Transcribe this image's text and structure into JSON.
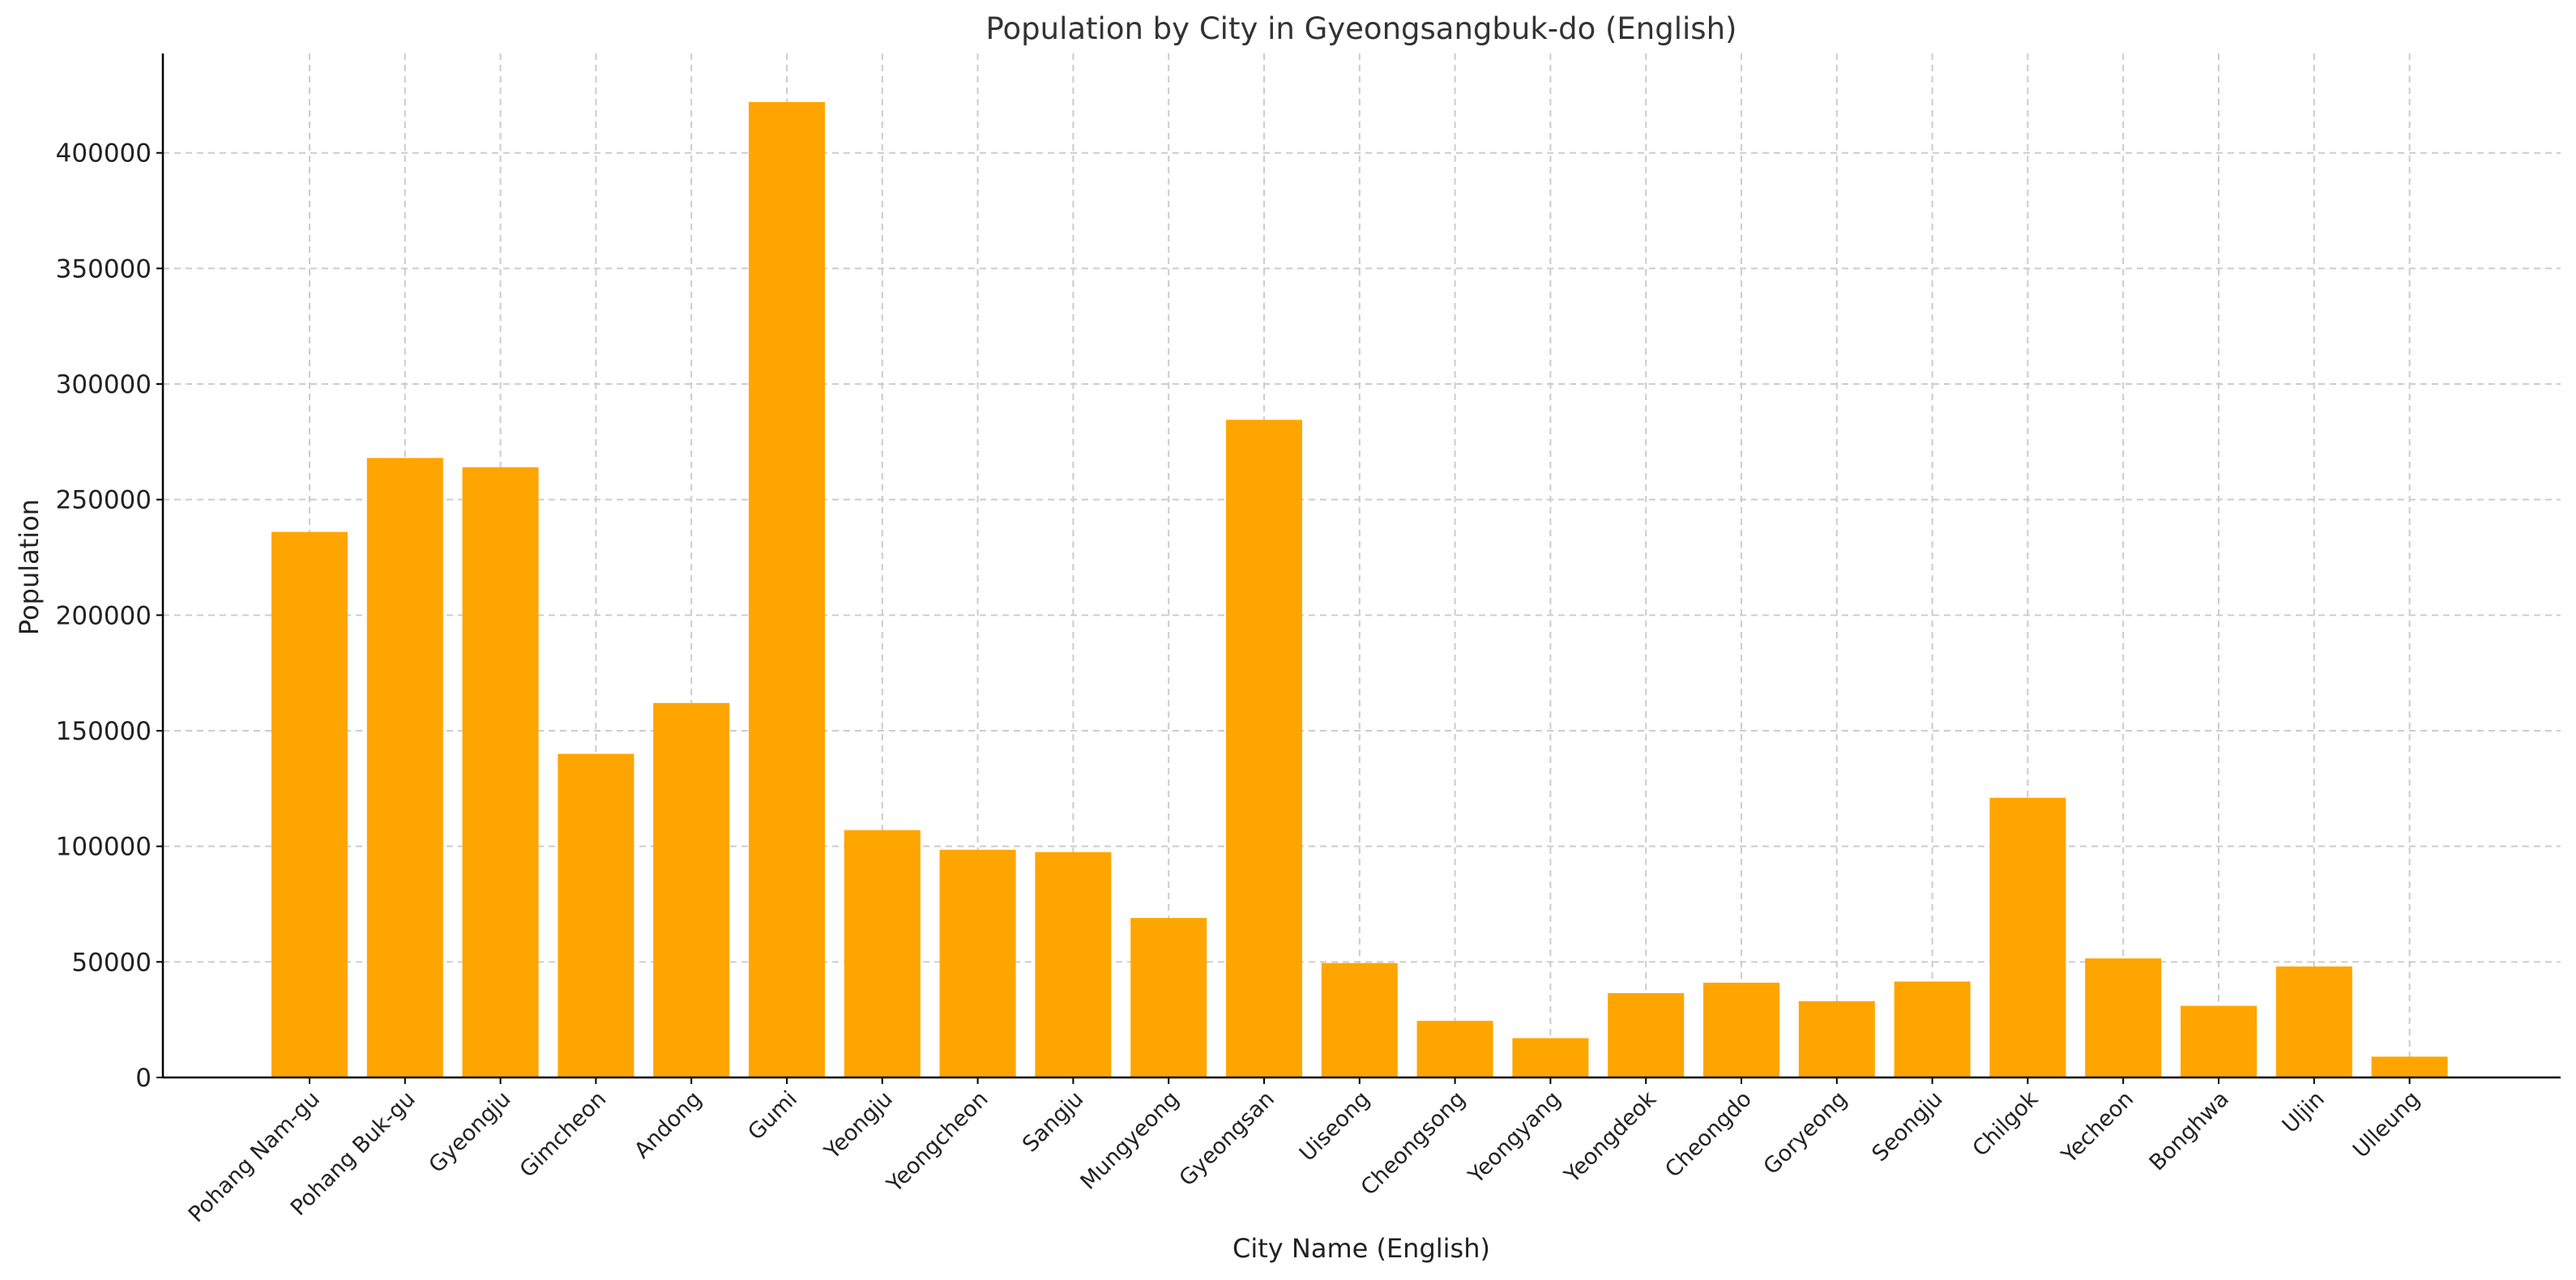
{
  "chart_data": {
    "type": "bar",
    "title": "Population by City in Gyeongsangbuk-do (English)",
    "xlabel": "City Name (English)",
    "ylabel": "Population",
    "ylim": [
      0,
      443000
    ],
    "yticks": [
      0,
      50000,
      100000,
      150000,
      200000,
      250000,
      300000,
      350000,
      400000
    ],
    "grid": true,
    "bar_color": "#FFA500",
    "categories": [
      "Pohang Nam-gu",
      "Pohang Buk-gu",
      "Gyeongju",
      "Gimcheon",
      "Andong",
      "Gumi",
      "Yeongju",
      "Yeongcheon",
      "Sangju",
      "Mungyeong",
      "Gyeongsan",
      "Uiseong",
      "Cheongsong",
      "Yeongyang",
      "Yeongdeok",
      "Cheongdo",
      "Goryeong",
      "Seongju",
      "Chilgok",
      "Yecheon",
      "Bonghwa",
      "Uljin",
      "Ulleung"
    ],
    "values": [
      236000,
      268000,
      264000,
      140000,
      162000,
      422000,
      107000,
      98500,
      97500,
      69000,
      284500,
      49500,
      24500,
      17000,
      36500,
      41000,
      33000,
      41500,
      121000,
      51500,
      31000,
      48000,
      9000
    ]
  }
}
